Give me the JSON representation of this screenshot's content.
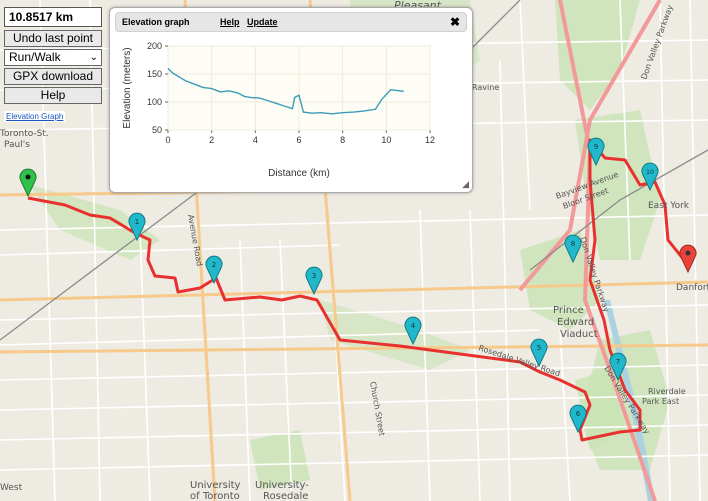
{
  "controls": {
    "distance": "10.8517 km",
    "undo_label": "Undo last point",
    "mode": "Run/Walk",
    "gpx_label": "GPX download",
    "help_label": "Help",
    "elevation_link": "Elevation Graph"
  },
  "elevation_panel": {
    "title": "Elevation graph",
    "help": "Help",
    "update": "Update",
    "close_icon": "close-icon"
  },
  "chart_data": {
    "type": "line",
    "xlabel": "Distance (km)",
    "ylabel": "Elevation (meters)",
    "xlim": [
      0,
      12
    ],
    "ylim": [
      50,
      200
    ],
    "xticks": [
      0,
      2,
      4,
      6,
      8,
      10,
      12
    ],
    "yticks": [
      50,
      100,
      150,
      200
    ],
    "grid": true,
    "line_color": "#3a9cb8",
    "x": [
      0,
      0.2,
      0.5,
      0.8,
      1.2,
      1.6,
      2.0,
      2.4,
      2.8,
      3.2,
      3.5,
      3.8,
      4.2,
      4.6,
      5.0,
      5.4,
      5.7,
      5.8,
      6.0,
      6.2,
      6.6,
      7.0,
      7.5,
      8.0,
      8.5,
      9.0,
      9.5,
      9.8,
      10.2,
      10.6,
      10.8
    ],
    "y": [
      160,
      152,
      145,
      138,
      132,
      126,
      124,
      118,
      120,
      116,
      110,
      108,
      107,
      102,
      97,
      92,
      88,
      108,
      112,
      82,
      80,
      81,
      79,
      81,
      82,
      84,
      87,
      105,
      122,
      120,
      119
    ]
  },
  "map": {
    "labels": {
      "pleasant": "Pleasant",
      "toronto_st_pauls_1": "Toronto-St.",
      "toronto_st_pauls_2": "Paul's",
      "avenue_road": "Avenue Road",
      "church_street": "Church Street",
      "rosedale_valley": "Rosedale Valley Road",
      "don_valley_pkwy_n": "Don Valley Parkway",
      "don_valley_pkwy_m": "Don Valley Parkway",
      "don_valley_pkwy_s": "Don Valley Parkway",
      "bayview_1": "Bayview Avenue",
      "bayview_2": "Bloor Street",
      "prince": "Prince",
      "edward": "Edward",
      "viaduct": "Viaduct",
      "danforth": "Danforth",
      "east_york": "East York",
      "riverdale_1": "Riverdale",
      "riverdale_2": "Park East",
      "ravine": "Ravine",
      "u_toronto_1": "University",
      "u_toronto_2": "of Toronto",
      "u_rosedale_1": "University-",
      "u_rosedale_2": "Rosedale",
      "west": "West"
    },
    "markers": [
      {
        "label": "1"
      },
      {
        "label": "2"
      },
      {
        "label": "3"
      },
      {
        "label": "4"
      },
      {
        "label": "5"
      },
      {
        "label": "6"
      },
      {
        "label": "7"
      },
      {
        "label": "8"
      },
      {
        "label": "9"
      },
      {
        "label": "10"
      }
    ],
    "colors": {
      "route": "#e8312f",
      "marker": "#22b8cc",
      "start": "#2ec24a",
      "end": "#e8443a",
      "park": "#c8e3b4",
      "road_major": "#f7c98a",
      "road_minor": "#ffffff",
      "water": "#aad3df"
    }
  }
}
